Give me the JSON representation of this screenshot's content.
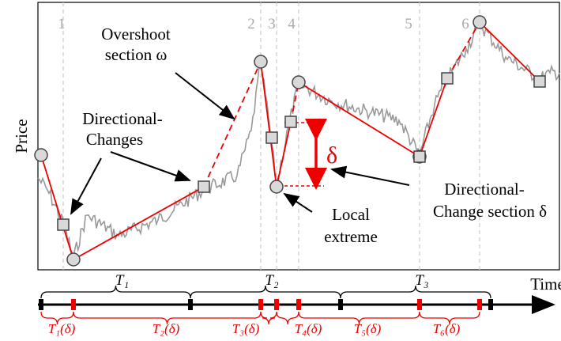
{
  "axes": {
    "y_label": "Price",
    "x_label": "Time"
  },
  "event_numbers": [
    "1",
    "2",
    "3",
    "4",
    "5",
    "6"
  ],
  "annotations": {
    "overshoot": [
      "Overshoot",
      "section ω"
    ],
    "directional_changes": [
      "Directional-",
      "Changes"
    ],
    "local_extreme": [
      "Local",
      "extreme"
    ],
    "dc_section": [
      "Directional-",
      "Change section δ"
    ],
    "delta": "δ"
  },
  "periods": [
    "T₁",
    "T₂",
    "T₃"
  ],
  "dc_periods": [
    "T₁(δ)",
    "T₂(δ)",
    "T₃(δ)",
    "T₄(δ)",
    "T₅(δ)",
    "T₆(δ)"
  ]
}
